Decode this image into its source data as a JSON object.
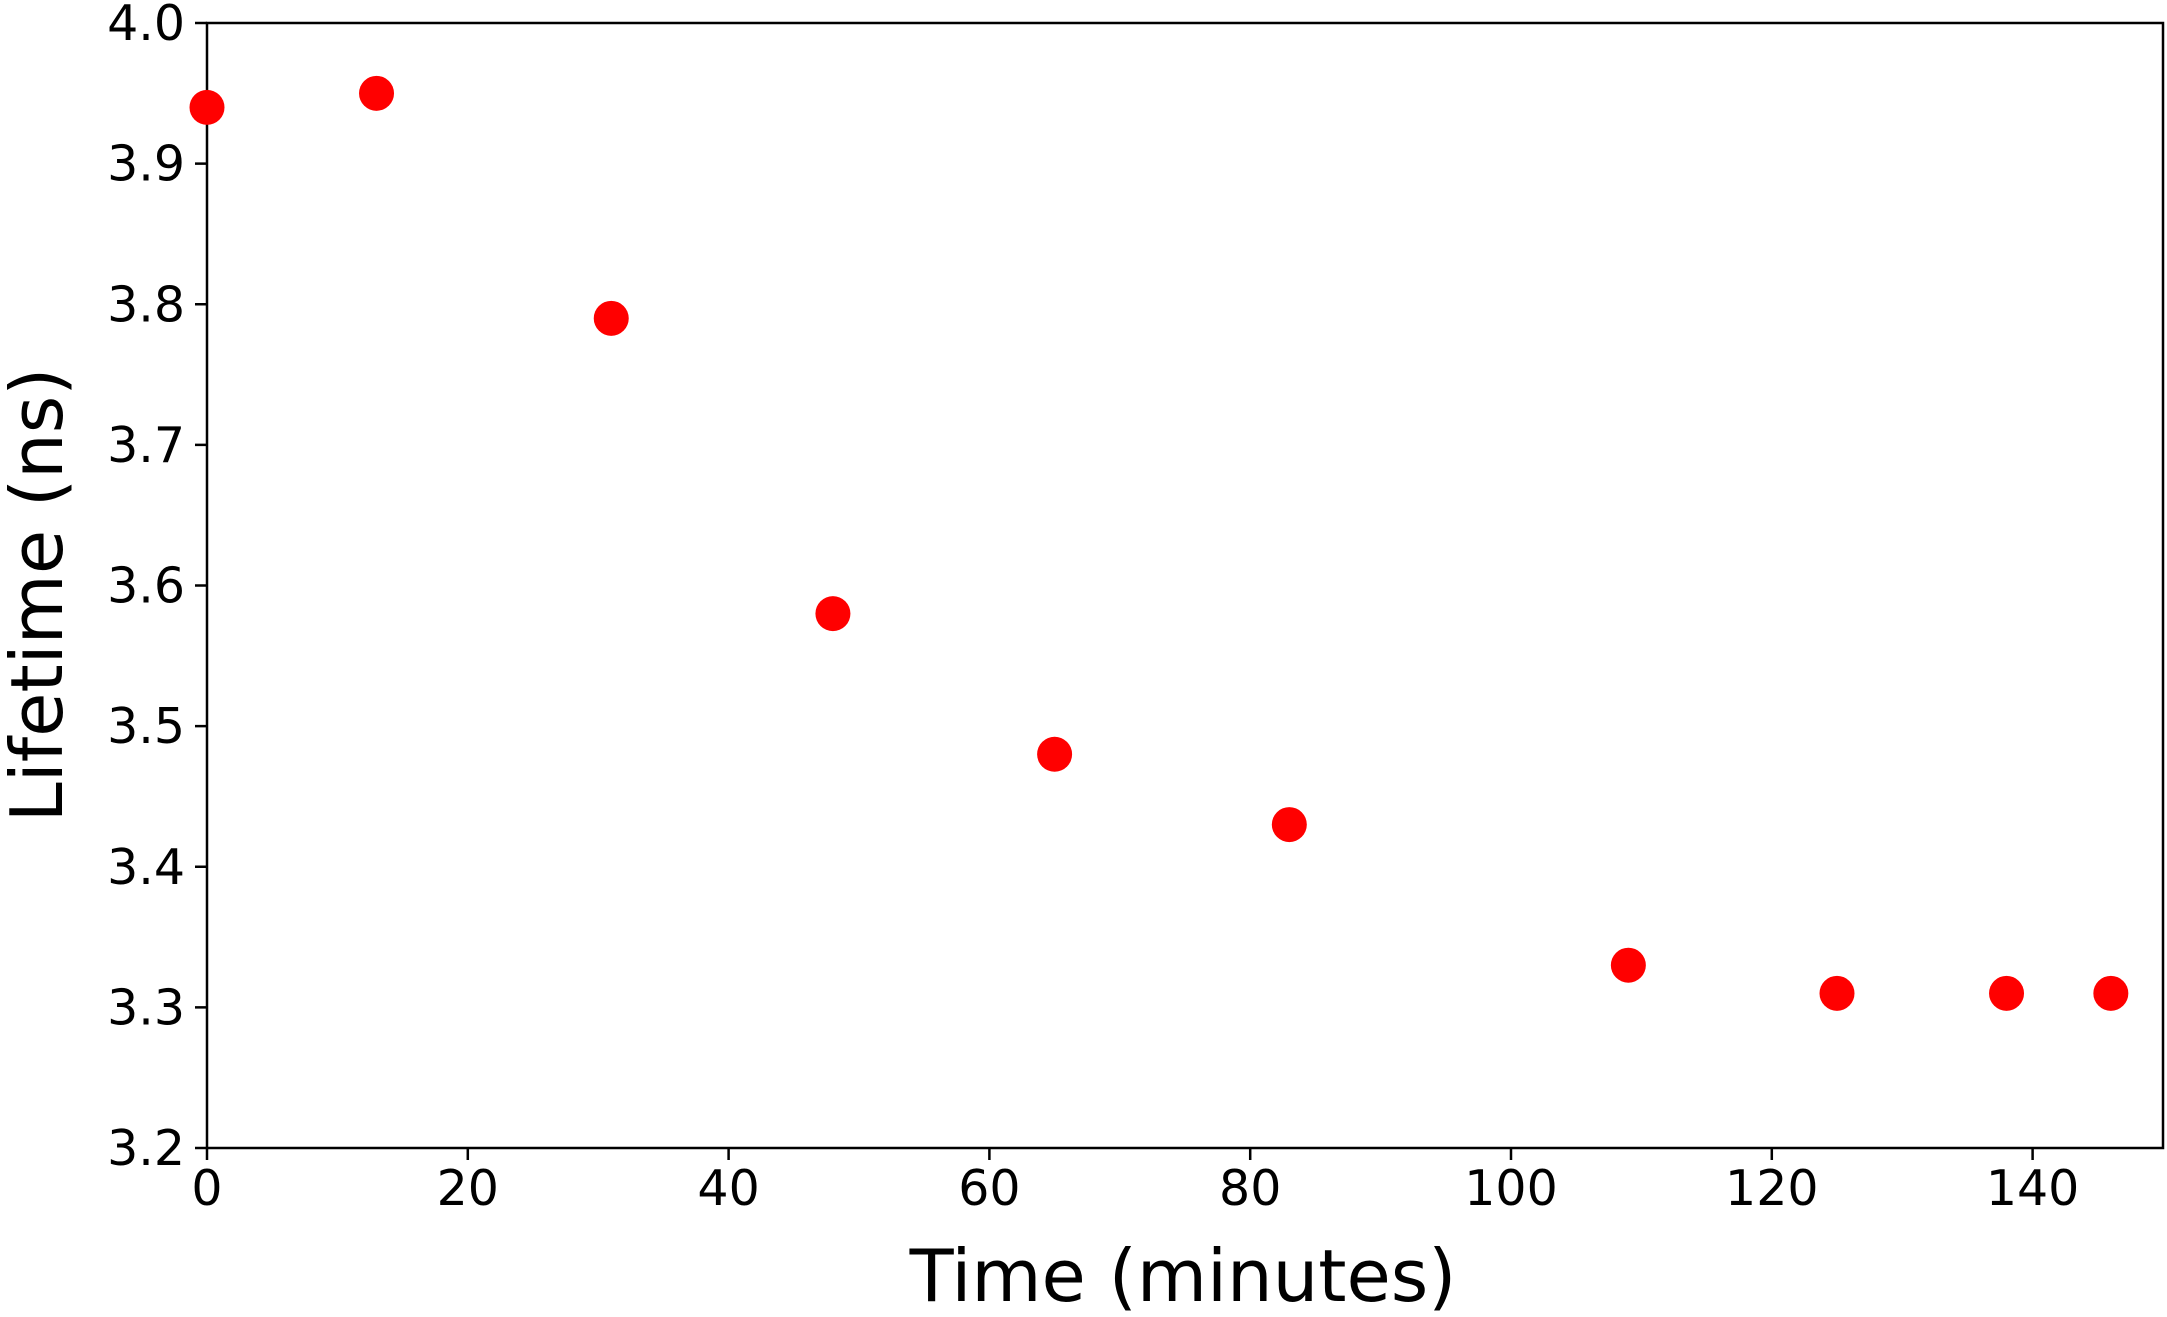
{
  "chart_data": {
    "type": "scatter",
    "title": "",
    "xlabel": "Time (minutes)",
    "ylabel": "Lifetime (ns)",
    "xlim": [
      0,
      150
    ],
    "ylim": [
      3.2,
      4.0
    ],
    "x_ticks": [
      "0",
      "20",
      "40",
      "60",
      "80",
      "100",
      "120",
      "140"
    ],
    "y_ticks": [
      "3.2",
      "3.3",
      "3.4",
      "3.5",
      "3.6",
      "3.7",
      "3.8",
      "3.9",
      "4.0"
    ],
    "grid": false,
    "legend": "none",
    "marker_color": "#ff0000",
    "series": [
      {
        "x": [
          0,
          13,
          31,
          48,
          65,
          83,
          109,
          125,
          138,
          146
        ],
        "y": [
          3.94,
          3.95,
          3.79,
          3.58,
          3.48,
          3.43,
          3.33,
          3.31,
          3.31,
          3.31
        ]
      }
    ]
  }
}
